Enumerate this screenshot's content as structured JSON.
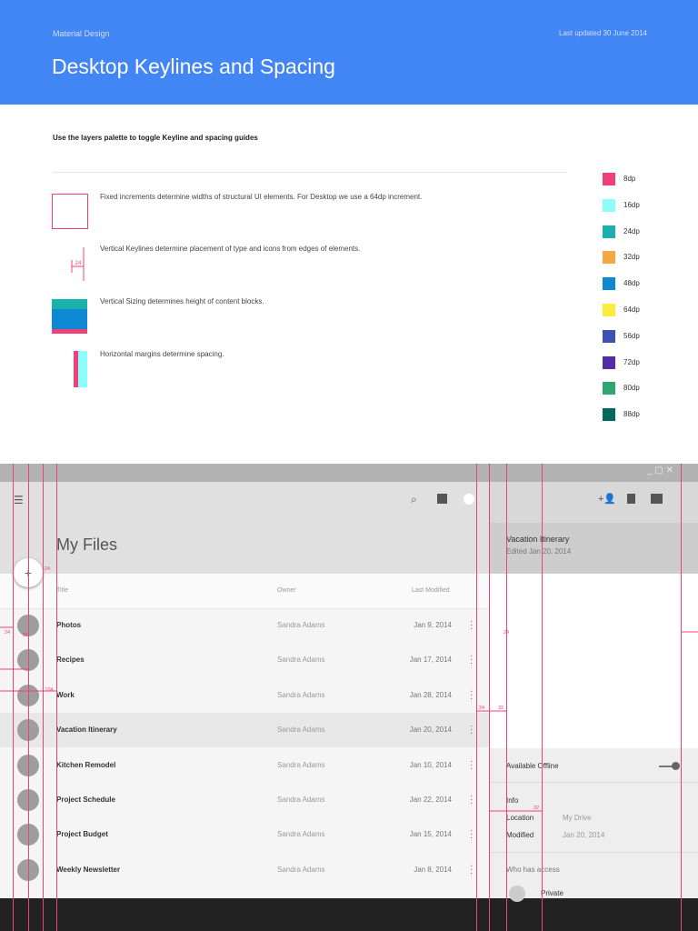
{
  "header": {
    "brand": "Material Design",
    "updated": "Last updated 30 June 2014",
    "title": "Desktop Keylines and Spacing"
  },
  "intro": "Use the layers palette to toggle Keyline and spacing guides",
  "rules": [
    "Fixed increments determine widths of structural UI elements. For Desktop we use a 64dp increment.",
    "Vertical Keylines determine placement of type and icons from edges of elements.",
    "Vertical Sizing determines height of content blocks.",
    "Horizontal margins determine spacing."
  ],
  "legend": [
    {
      "label": "8dp",
      "color": "#f0407a"
    },
    {
      "label": "16dp",
      "color": "#8cfdfd"
    },
    {
      "label": "24dp",
      "color": "#1ab1ab"
    },
    {
      "label": "32dp",
      "color": "#f5a742"
    },
    {
      "label": "48dp",
      "color": "#0e88d3"
    },
    {
      "label": "64dp",
      "color": "#ffeb3b"
    },
    {
      "label": "56dp",
      "color": "#3f51b5"
    },
    {
      "label": "72dp",
      "color": "#512da8"
    },
    {
      "label": "80dp",
      "color": "#2ea66f"
    },
    {
      "label": "88dp",
      "color": "#00695c"
    }
  ],
  "app": {
    "title": "My Files",
    "columns": [
      "Title",
      "Owner",
      "Last Modified"
    ],
    "rows": [
      [
        "Photos",
        "Sandra Adams",
        "Jan 9, 2014"
      ],
      [
        "Recipes",
        "Sandra Adams",
        "Jan 17, 2014"
      ],
      [
        "Work",
        "Sandra Adams",
        "Jan 28, 2014"
      ],
      [
        "Vacation Itinerary",
        "Sandra Adams",
        "Jan 20, 2014"
      ],
      [
        "Kitchen Remodel",
        "Sandra Adams",
        "Jan 10, 2014"
      ],
      [
        "Project Schedule",
        "Sandra Adams",
        "Jan 22, 2014"
      ],
      [
        "Project Budget",
        "Sandra Adams",
        "Jan 15, 2014"
      ],
      [
        "Weekly Newsletter",
        "Sandra Adams",
        "Jan 8, 2014"
      ]
    ],
    "detail": {
      "title": "Vacation Itinerary",
      "subtitle": "Edited Jan 20, 2014",
      "offline": "Available Offline",
      "info": "Info",
      "location_label": "Location",
      "location": "My Drive",
      "modified_label": "Modified",
      "modified": "Jan 20, 2014",
      "access": "Who has access",
      "private": "Private"
    },
    "annotations": [
      "24",
      "24",
      "24",
      "104",
      "24",
      "32",
      "32",
      "96"
    ]
  }
}
